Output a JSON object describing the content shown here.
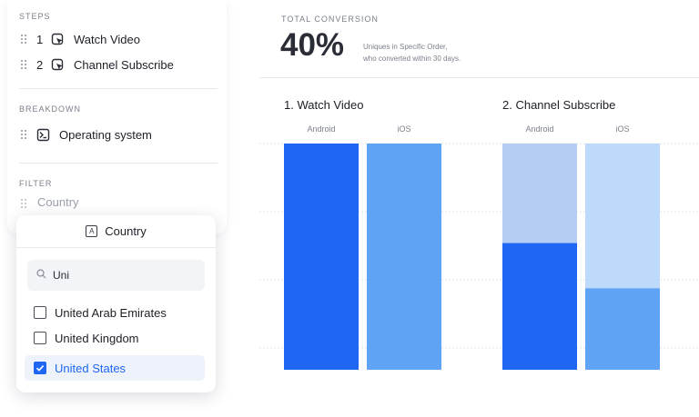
{
  "sidebar": {
    "steps_label": "STEPS",
    "steps": [
      {
        "num": "1",
        "label": "Watch Video"
      },
      {
        "num": "2",
        "label": "Channel Subscribe"
      }
    ],
    "breakdown_label": "BREAKDOWN",
    "breakdown_item": "Operating system",
    "filter_label": "FILTER",
    "filter_placeholder": "Country"
  },
  "dropdown": {
    "title": "Country",
    "search_value": "Uni",
    "options": [
      {
        "label": "United Arab Emirates",
        "checked": false
      },
      {
        "label": "United Kingdom",
        "checked": false
      },
      {
        "label": "United States",
        "checked": true
      }
    ]
  },
  "summary": {
    "label": "TOTAL CONVERSION",
    "value": "40%",
    "note_line1": "Uniques in Specific Order,",
    "note_line2": "who converted within 30 days."
  },
  "colors": {
    "android_dark": "#1f66f2",
    "ios_dark": "#5fa3f5",
    "android_light": "#b5cdf3",
    "ios_light": "#bedafb"
  },
  "chart_data": {
    "type": "bar",
    "groups": [
      {
        "title": "1. Watch Video",
        "bars": [
          {
            "name": "Android",
            "converted": 1.0
          },
          {
            "name": "iOS",
            "converted": 1.0
          }
        ]
      },
      {
        "title": "2. Channel Subscribe",
        "bars": [
          {
            "name": "Android",
            "converted": 0.56
          },
          {
            "name": "iOS",
            "converted": 0.36
          }
        ]
      }
    ],
    "ylim": [
      0,
      1
    ],
    "grid": true
  }
}
